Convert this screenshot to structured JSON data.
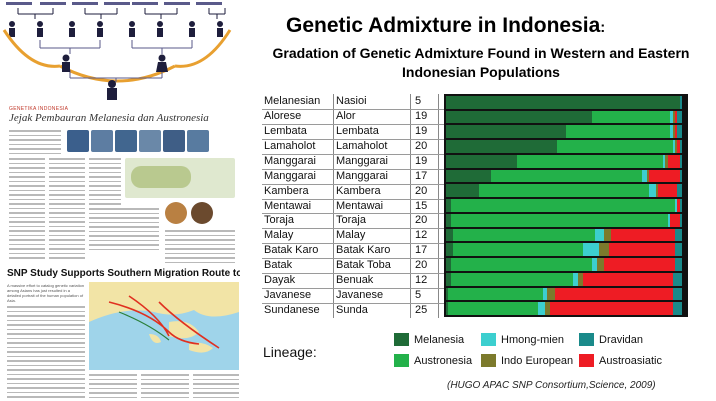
{
  "title": {
    "main": "Genetic Admixture in Indonesia",
    "colon": ":"
  },
  "subtitle": "Gradation of Genetic Admixture Found in Western and Eastern Indonesian Populations",
  "table": [
    {
      "group": "Melanesian",
      "population": "Nasioi",
      "n": "5"
    },
    {
      "group": "Alorese",
      "population": "Alor",
      "n": "19"
    },
    {
      "group": "Lembata",
      "population": "Lembata",
      "n": "19"
    },
    {
      "group": "Lamaholot",
      "population": "Lamaholot",
      "n": "20"
    },
    {
      "group": "Manggarai",
      "population": "Manggarai",
      "n": "19"
    },
    {
      "group": "Manggarai",
      "population": "Manggarai",
      "n": "17"
    },
    {
      "group": "Kambera",
      "population": "Kambera",
      "n": "20"
    },
    {
      "group": "Mentawai",
      "population": "Mentawai",
      "n": "15"
    },
    {
      "group": "Toraja",
      "population": "Toraja",
      "n": "20"
    },
    {
      "group": "Malay",
      "population": "Malay",
      "n": "12"
    },
    {
      "group": "Batak Karo",
      "population": "Batak Karo",
      "n": "17"
    },
    {
      "group": "Batak",
      "population": "Batak Toba",
      "n": "20"
    },
    {
      "group": "Dayak",
      "population": "Benuak",
      "n": "12"
    },
    {
      "group": "Javanese",
      "population": "Javanese",
      "n": "5"
    },
    {
      "group": "Sundanese",
      "population": "Sunda",
      "n": "25"
    }
  ],
  "colors": {
    "melanesia": "#1f6b37",
    "austronesia": "#23b14a",
    "hmong_mien": "#3ccfcf",
    "indo_european": "#7c7a2c",
    "dravidan": "#1a8a8a",
    "austroasiatic": "#ee1c24",
    "other": "#7a5ab0"
  },
  "lineage": {
    "label": "Lineage:",
    "items": [
      {
        "name": "Melanesia",
        "color": "#1f6b37"
      },
      {
        "name": "Hmong-mien",
        "color": "#3ccfcf"
      },
      {
        "name": "Dravidan",
        "color": "#1a8a8a"
      },
      {
        "name": "Austronesia",
        "color": "#23b14a"
      },
      {
        "name": "Indo European",
        "color": "#7c7a2c"
      },
      {
        "name": "Austroasiatic",
        "color": "#ee1c24"
      }
    ]
  },
  "chart_data": {
    "type": "bar",
    "orientation": "horizontal-stacked",
    "categories": [
      "Nasioi",
      "Alor",
      "Lembata",
      "Lamaholot",
      "Manggarai",
      "Manggarai",
      "Kambera",
      "Mentawai",
      "Toraja",
      "Malay",
      "Batak Karo",
      "Batak Toba",
      "Benuak",
      "Javanese",
      "Sunda"
    ],
    "series": [
      {
        "name": "Melanesia",
        "values": [
          0.99,
          0.62,
          0.51,
          0.47,
          0.3,
          0.19,
          0.14,
          0.02,
          0.02,
          0.03,
          0.03,
          0.02,
          0.02,
          0.01,
          0.01
        ]
      },
      {
        "name": "Austronesia",
        "values": [
          0,
          0.33,
          0.44,
          0.49,
          0.62,
          0.64,
          0.72,
          0.95,
          0.92,
          0.6,
          0.55,
          0.6,
          0.52,
          0.4,
          0.38
        ]
      },
      {
        "name": "Hmong-mien",
        "values": [
          0,
          0.01,
          0.01,
          0.01,
          0.01,
          0.02,
          0.03,
          0.01,
          0.01,
          0.04,
          0.07,
          0.02,
          0.02,
          0.02,
          0.03
        ]
      },
      {
        "name": "Indo European",
        "values": [
          0,
          0.01,
          0.01,
          0.01,
          0.01,
          0.01,
          0.01,
          0,
          0,
          0.03,
          0.04,
          0.03,
          0.02,
          0.03,
          0.02
        ]
      },
      {
        "name": "Austroasiatic",
        "values": [
          0,
          0.01,
          0.01,
          0.01,
          0.05,
          0.13,
          0.08,
          0.01,
          0.04,
          0.27,
          0.28,
          0.3,
          0.38,
          0.5,
          0.52
        ]
      },
      {
        "name": "Dravidan",
        "values": [
          0.01,
          0.02,
          0.02,
          0.01,
          0.01,
          0.01,
          0.02,
          0.01,
          0.01,
          0.03,
          0.03,
          0.03,
          0.04,
          0.04,
          0.04
        ]
      }
    ],
    "xlim": [
      0,
      1
    ]
  },
  "left": {
    "article_title": "Jejak Pembauran Melanesia dan Austronesia",
    "article_kicker": "GENETIKA INDONESIA",
    "snp_headline": "SNP Study Supports Southern Migration Route to Asia",
    "snp_body": "A massive effort to catalog genetic variation among Asians has just resulted in a detailed portrait of the human population of Asia."
  },
  "credit": "(HUGO APAC SNP Consortium,Science, 2009)"
}
